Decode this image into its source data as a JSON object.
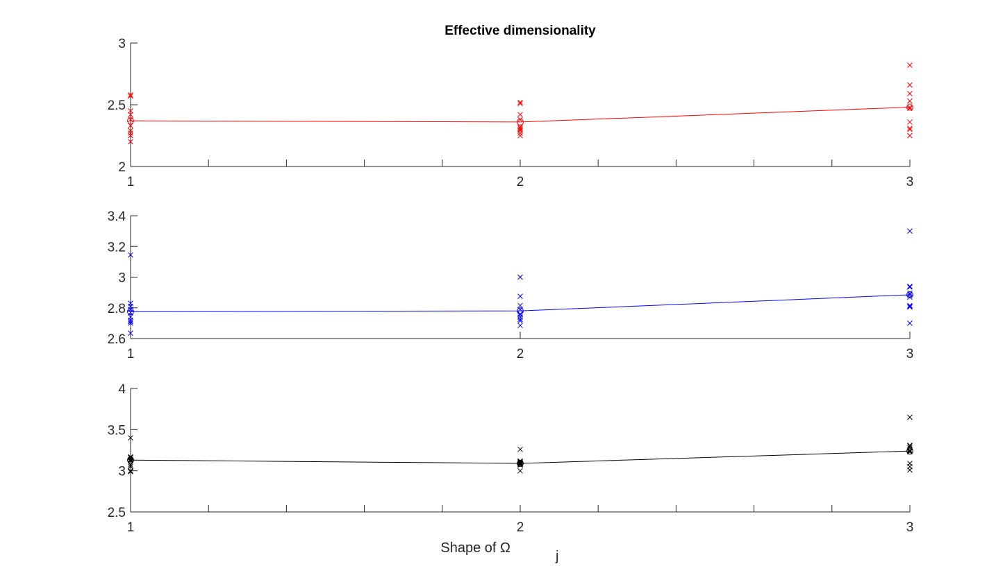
{
  "figure": {
    "title": "Effective dimensionality",
    "xlabel_main": "Shape of Ω",
    "xlabel_sub": "j"
  },
  "chart_data": [
    {
      "type": "line",
      "title": "Effective dimensionality",
      "xlabel": "",
      "ylabel": "",
      "color": "#ff0000",
      "xlim": [
        1,
        3
      ],
      "ylim": [
        2,
        3
      ],
      "xticks": [
        1,
        2,
        3
      ],
      "yticks": [
        2,
        2.5,
        3
      ],
      "x_minor_ticks": [
        1.2,
        1.4,
        1.6,
        1.8,
        2.2,
        2.4,
        2.6,
        2.8
      ],
      "grid": false,
      "mean_line": {
        "x": [
          1,
          2,
          3
        ],
        "y": [
          2.37,
          2.36,
          2.48
        ]
      },
      "samples": [
        {
          "x": 1,
          "y": [
            2.58,
            2.57,
            2.45,
            2.42,
            2.38,
            2.33,
            2.29,
            2.27,
            2.25,
            2.2
          ]
        },
        {
          "x": 2,
          "y": [
            2.52,
            2.51,
            2.42,
            2.38,
            2.32,
            2.31,
            2.3,
            2.29,
            2.27,
            2.25
          ]
        },
        {
          "x": 3,
          "y": [
            2.82,
            2.66,
            2.59,
            2.53,
            2.48,
            2.47,
            2.36,
            2.31,
            2.3,
            2.25
          ]
        }
      ]
    },
    {
      "type": "line",
      "title": "",
      "xlabel": "",
      "ylabel": "",
      "color": "#0000ff",
      "xlim": [
        1,
        3
      ],
      "ylim": [
        2.6,
        3.4
      ],
      "xticks": [
        1,
        2,
        3
      ],
      "yticks": [
        2.6,
        2.8,
        3,
        3.2,
        3.4
      ],
      "x_minor_ticks": [],
      "grid": false,
      "mean_line": {
        "x": [
          1,
          2,
          3
        ],
        "y": [
          2.775,
          2.78,
          2.885
        ]
      },
      "samples": [
        {
          "x": 1,
          "y": [
            3.145,
            2.83,
            2.81,
            2.79,
            2.77,
            2.74,
            2.72,
            2.71,
            2.7,
            2.635
          ]
        },
        {
          "x": 2,
          "y": [
            3.0,
            2.875,
            2.815,
            2.79,
            2.76,
            2.755,
            2.74,
            2.725,
            2.715,
            2.685
          ]
        },
        {
          "x": 3,
          "y": [
            3.3,
            2.94,
            2.935,
            2.895,
            2.885,
            2.87,
            2.815,
            2.81,
            2.805,
            2.7
          ]
        }
      ]
    },
    {
      "type": "line",
      "title": "",
      "xlabel": "Shape of Ω_j",
      "ylabel": "",
      "color": "#000000",
      "xlim": [
        1,
        3
      ],
      "ylim": [
        2.5,
        4
      ],
      "xticks": [
        1,
        2,
        3
      ],
      "yticks": [
        2.5,
        3,
        3.5,
        4
      ],
      "x_minor_ticks": [
        1.2,
        1.4,
        1.6,
        1.8,
        2.2,
        2.4,
        2.6,
        2.8
      ],
      "grid": false,
      "mean_line": {
        "x": [
          1,
          2,
          3
        ],
        "y": [
          3.13,
          3.09,
          3.24
        ]
      },
      "samples": [
        {
          "x": 1,
          "y": [
            3.4,
            3.17,
            3.16,
            3.14,
            3.13,
            3.12,
            3.07,
            3.05,
            3.0,
            2.99
          ]
        },
        {
          "x": 2,
          "y": [
            3.26,
            3.12,
            3.11,
            3.1,
            3.09,
            3.09,
            3.08,
            3.08,
            3.07,
            3.0
          ]
        },
        {
          "x": 3,
          "y": [
            3.65,
            3.31,
            3.3,
            3.28,
            3.25,
            3.24,
            3.23,
            3.09,
            3.05,
            3.01
          ]
        }
      ]
    }
  ]
}
